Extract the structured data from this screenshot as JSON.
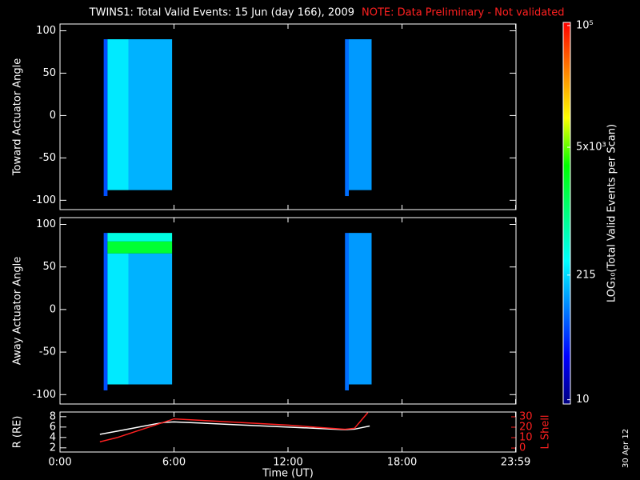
{
  "chart_data": [
    {
      "type": "heatmap",
      "title": "TWINS1: Total Valid Events: 15 Jun (day 166), 2009",
      "note": "NOTE: Data Preliminary - Not validated",
      "note_color": "#ff2020",
      "ylabel": "Toward Actuator Angle",
      "ylim": [
        -111,
        108
      ],
      "yticks": [
        -100,
        -50,
        0,
        50,
        100
      ],
      "cells": [
        {
          "x": [
            2.3,
            2.5
          ],
          "y": [
            -95,
            90
          ],
          "value": 60
        },
        {
          "x": [
            2.5,
            3.6
          ],
          "y": [
            -88,
            90
          ],
          "value": 250
        },
        {
          "x": [
            3.6,
            5.9
          ],
          "y": [
            -88,
            90
          ],
          "value": 150
        },
        {
          "x": [
            15.0,
            15.2
          ],
          "y": [
            -95,
            90
          ],
          "value": 80
        },
        {
          "x": [
            15.2,
            16.4
          ],
          "y": [
            -88,
            90
          ],
          "value": 120
        }
      ],
      "colorbar": {
        "title": "LOG₁₀(Total Valid Events per Scan)",
        "log": true,
        "lim": [
          9,
          108000
        ],
        "ticks": [
          10,
          215,
          {
            "value": 5000,
            "label": "5x10³"
          },
          {
            "value": 100000,
            "label": "10⁵"
          }
        ],
        "colormap": [
          "#000080",
          "#0000ff",
          "#0080ff",
          "#00ffff",
          "#00ff80",
          "#00ff00",
          "#ffff00",
          "#ff8000",
          "#ff0000"
        ]
      }
    },
    {
      "type": "heatmap",
      "ylabel": "Away Actuator Angle",
      "ylim": [
        -111,
        108
      ],
      "yticks": [
        -100,
        -50,
        0,
        50,
        100
      ],
      "cells": [
        {
          "x": [
            2.3,
            2.5
          ],
          "y": [
            -95,
            90
          ],
          "value": 60
        },
        {
          "x": [
            2.5,
            3.6
          ],
          "y": [
            -88,
            66
          ],
          "value": 250
        },
        {
          "x": [
            3.6,
            5.9
          ],
          "y": [
            -88,
            66
          ],
          "value": 150
        },
        {
          "x": [
            2.5,
            5.9
          ],
          "y": [
            66,
            80
          ],
          "value": 2000
        },
        {
          "x": [
            2.5,
            5.9
          ],
          "y": [
            80,
            90
          ],
          "value": 400
        },
        {
          "x": [
            15.0,
            15.2
          ],
          "y": [
            -95,
            90
          ],
          "value": 80
        },
        {
          "x": [
            15.2,
            16.4
          ],
          "y": [
            -88,
            90
          ],
          "value": 120
        }
      ]
    },
    {
      "type": "line",
      "ylabel": "R (RE)",
      "ylim": [
        1.2,
        8.9
      ],
      "yticks": [
        2,
        4,
        6,
        8
      ],
      "y2label": "L Shell",
      "y2color": "#ff2020",
      "y2lim": [
        -3.8,
        34.6
      ],
      "y2ticks": [
        0,
        10,
        20,
        30
      ],
      "xlabel": "Time (UT)",
      "xlim": [
        0,
        24
      ],
      "xticks": [
        {
          "value": 0,
          "label": "0:00"
        },
        {
          "value": 6,
          "label": "6:00"
        },
        {
          "value": 12,
          "label": "12:00"
        },
        {
          "value": 18,
          "label": "18:00"
        },
        {
          "value": 23.98,
          "label": "23:59"
        }
      ],
      "annotation": "30 Apr 12",
      "series": [
        {
          "color": "#ffffff",
          "x": [
            2.1,
            3,
            4,
            5,
            5.5,
            6,
            9,
            12,
            15,
            15.5,
            16.3
          ],
          "values": [
            4.6,
            5.2,
            5.9,
            6.6,
            6.9,
            7,
            6.5,
            6,
            5.5,
            5.6,
            6.2
          ]
        },
        {
          "color": "#ff2020",
          "axis": "y2",
          "x": [
            2.1,
            3,
            4,
            5,
            6,
            9,
            12,
            15,
            15.5,
            16.2
          ],
          "values": [
            6,
            10,
            16,
            22,
            28,
            25,
            22,
            18,
            19,
            34
          ]
        }
      ]
    }
  ]
}
